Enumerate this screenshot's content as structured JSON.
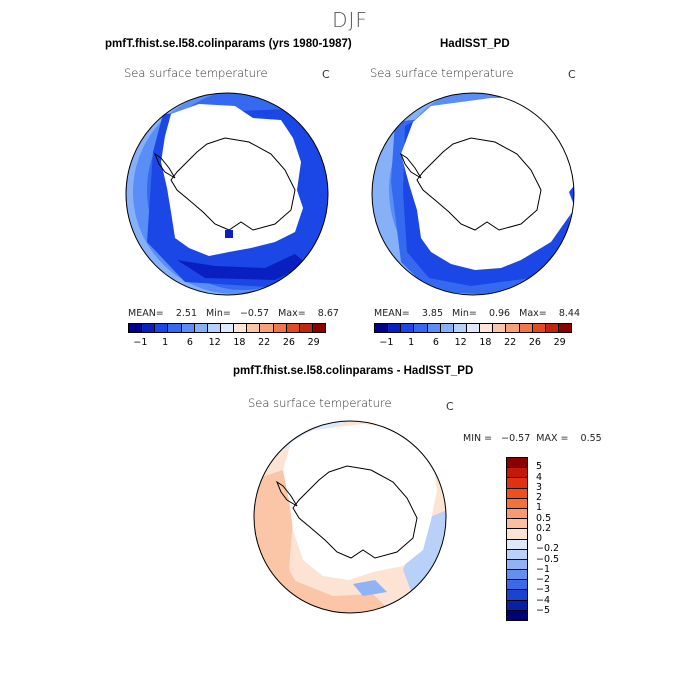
{
  "figure": {
    "title": "DJF"
  },
  "panels": {
    "model": {
      "title": "pmfT.fhist.se.l58.colinparams (yrs 1980-1987)",
      "variable": "Sea surface temperature",
      "unit": "C",
      "stats": "MEAN=    2.51   Min=   −0.57   Max=    8.67"
    },
    "obs": {
      "title": "HadISST_PD",
      "variable": "Sea surface temperature",
      "unit": "C",
      "stats": "MEAN=    3.85   Min=    0.96   Max=    8.44"
    },
    "diff": {
      "title": "pmfT.fhist.se.l58.colinparams - HadISST_PD",
      "variable": "Sea surface temperature",
      "unit": "C",
      "stats": "MIN =   −0.57  MAX =    0.55"
    }
  },
  "colorbars": {
    "sst": {
      "tick_labels": [
        "−1",
        "1",
        "6",
        "12",
        "18",
        "22",
        "26",
        "29"
      ],
      "colors": [
        "#00008b",
        "#0a1fbf",
        "#1a47e6",
        "#3569f0",
        "#5a8df5",
        "#86b0f7",
        "#b5d0fa",
        "#dfe9fb",
        "#fde6d8",
        "#fbc6a8",
        "#f7a07a",
        "#f1754d",
        "#e24a25",
        "#c02510",
        "#8b0000"
      ]
    },
    "diff": {
      "tick_labels": [
        "5",
        "4",
        "3",
        "2",
        "1",
        "0.5",
        "0.2",
        "0",
        "−0.2",
        "−0.5",
        "−1",
        "−2",
        "−3",
        "−4",
        "−5"
      ],
      "colors": [
        "#8b0000",
        "#c21a06",
        "#e0320f",
        "#f04e1c",
        "#f6703c",
        "#f99a72",
        "#fbbf9f",
        "#fde3d3",
        "#dde8fb",
        "#b9d1f8",
        "#8fb3f5",
        "#6390f0",
        "#3b6ae8",
        "#1c43cf",
        "#0a1fa6",
        "#00007a"
      ]
    }
  },
  "chart_data": [
    {
      "type": "heatmap",
      "title": "pmfT.fhist.se.l58.colinparams (yrs 1980-1987)",
      "variable": "Sea surface temperature",
      "units": "C",
      "season": "DJF",
      "projection": "south polar stereographic",
      "mean": 2.51,
      "min": -0.57,
      "max": 8.67,
      "levels": [
        -1,
        1,
        6,
        12,
        18,
        22,
        26,
        29
      ]
    },
    {
      "type": "heatmap",
      "title": "HadISST_PD",
      "variable": "Sea surface temperature",
      "units": "C",
      "season": "DJF",
      "projection": "south polar stereographic",
      "mean": 3.85,
      "min": 0.96,
      "max": 8.44,
      "levels": [
        -1,
        1,
        6,
        12,
        18,
        22,
        26,
        29
      ]
    },
    {
      "type": "heatmap",
      "title": "pmfT.fhist.se.l58.colinparams - HadISST_PD",
      "variable": "Sea surface temperature",
      "units": "C",
      "season": "DJF",
      "projection": "south polar stereographic",
      "min": -0.57,
      "max": 0.55,
      "levels": [
        -5,
        -4,
        -3,
        -2,
        -1,
        -0.5,
        -0.2,
        0,
        0.2,
        0.5,
        1,
        2,
        3,
        4,
        5
      ]
    }
  ]
}
